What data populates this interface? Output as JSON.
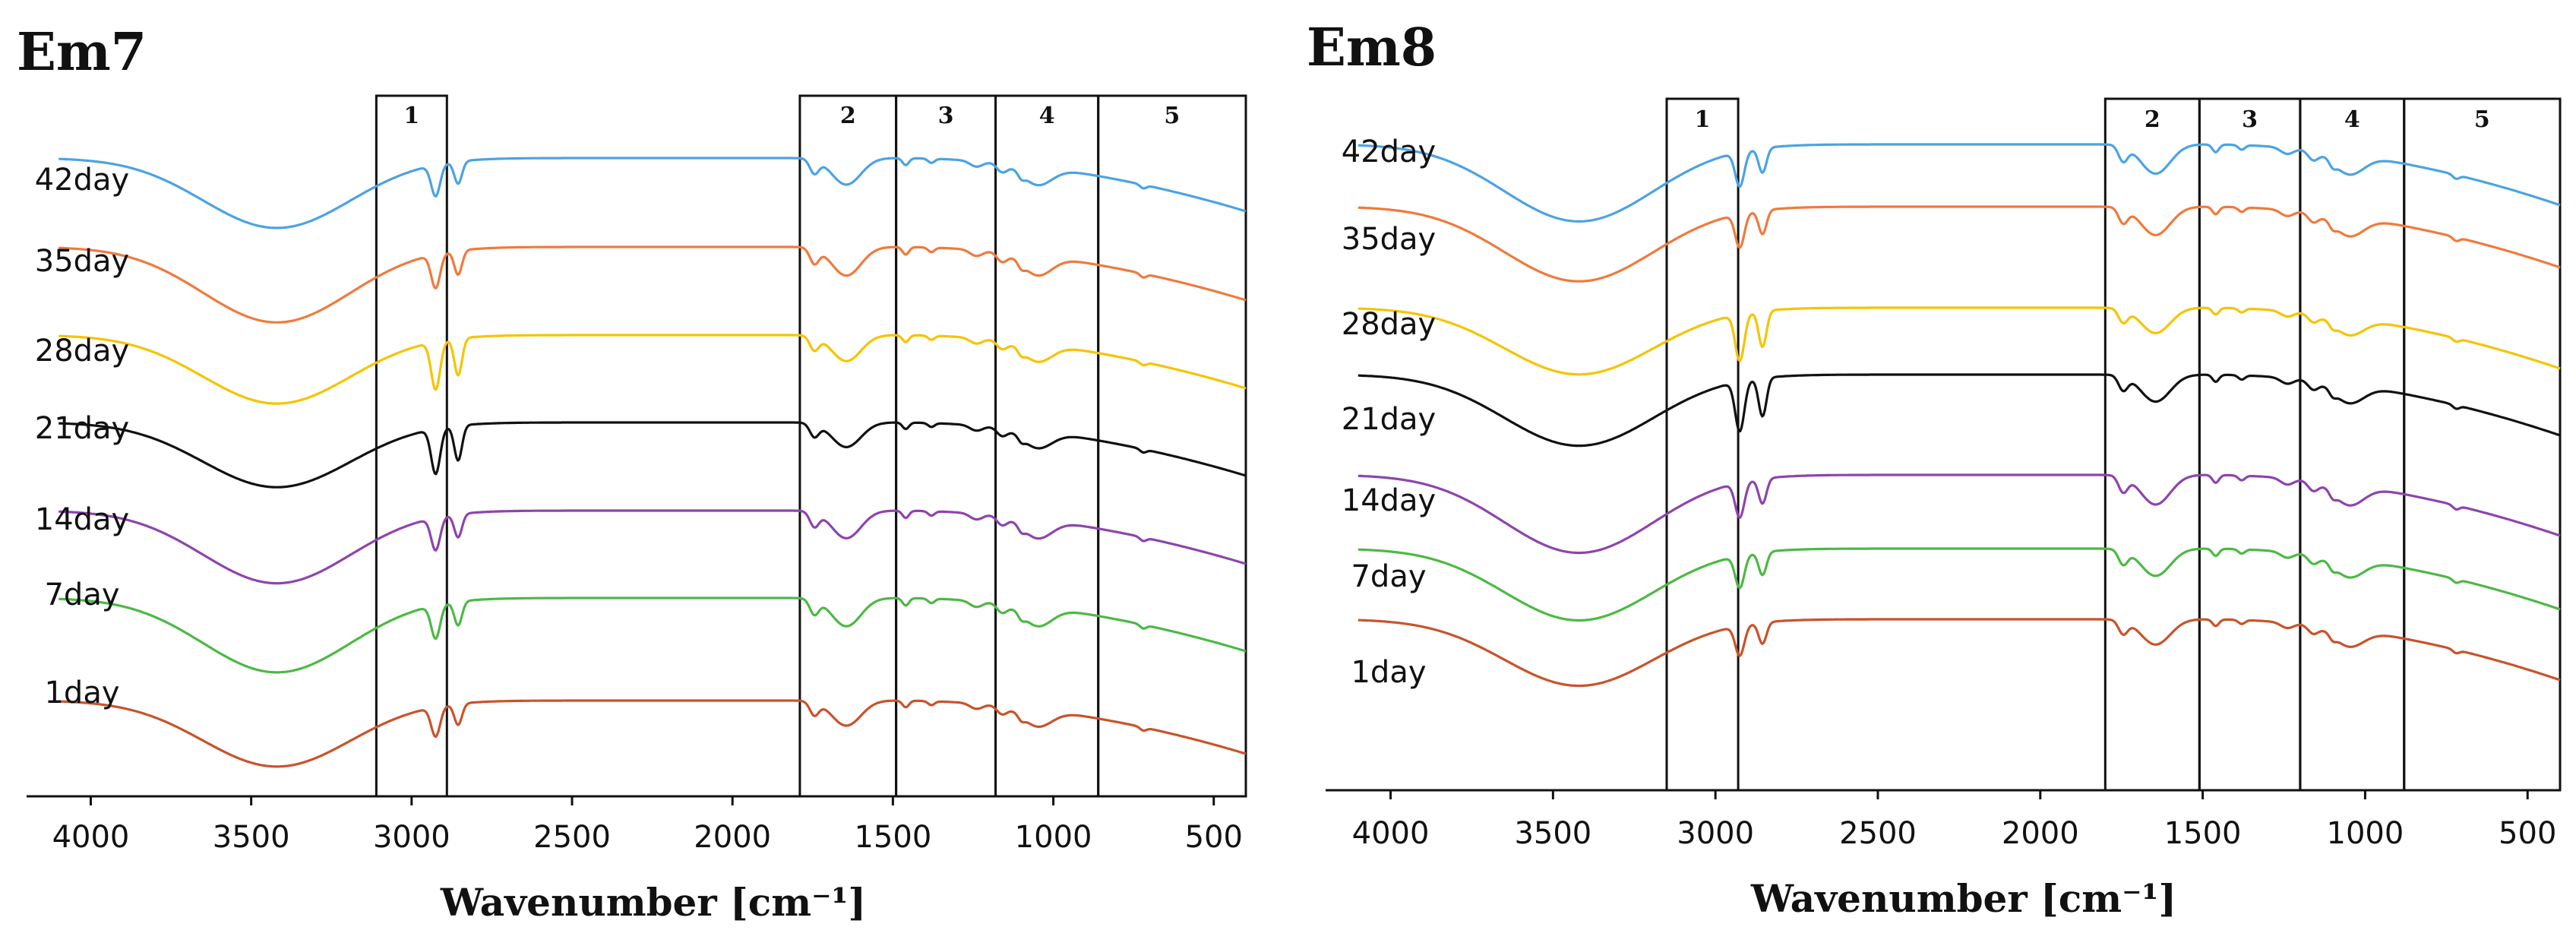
{
  "chart_data": [
    {
      "type": "line",
      "title": "Em7",
      "xlabel": "Wavenumber [cm⁻¹]",
      "ylabel": "",
      "xlim": [
        4200,
        400
      ],
      "x_ticks": [
        4000,
        3500,
        3000,
        2500,
        2000,
        1500,
        1000,
        500
      ],
      "tick_labels": [
        "4000",
        "3500",
        "3000",
        "2500",
        "2000",
        "1500",
        "1000",
        "500"
      ],
      "regions": [
        {
          "label": "1",
          "from": 3110,
          "to": 2890
        },
        {
          "label": "2",
          "from": 1790,
          "to": 1490
        },
        {
          "label": "3",
          "from": 1490,
          "to": 1180
        },
        {
          "label": "4",
          "from": 1180,
          "to": 860
        },
        {
          "label": "5",
          "from": 860,
          "to": 400
        }
      ],
      "series": [
        {
          "name": "42day",
          "color": "#4BA3E3"
        },
        {
          "name": "35day",
          "color": "#F07A3C"
        },
        {
          "name": "28day",
          "color": "#F5C400"
        },
        {
          "name": "21day",
          "color": "#111111"
        },
        {
          "name": "14day",
          "color": "#8E44AD"
        },
        {
          "name": "7day",
          "color": "#4CB944"
        },
        {
          "name": "1day",
          "color": "#C9532A"
        }
      ]
    },
    {
      "type": "line",
      "title": "Em8",
      "xlabel": "Wavenumber [cm⁻¹]",
      "ylabel": "",
      "xlim": [
        4200,
        400
      ],
      "x_ticks": [
        4000,
        3500,
        3000,
        2500,
        2000,
        1500,
        1000,
        500
      ],
      "tick_labels": [
        "4000",
        "3500",
        "3000",
        "2500",
        "2000",
        "1500",
        "1000",
        "500"
      ],
      "regions": [
        {
          "label": "1",
          "from": 3150,
          "to": 2930
        },
        {
          "label": "2",
          "from": 1800,
          "to": 1510
        },
        {
          "label": "3",
          "from": 1510,
          "to": 1200
        },
        {
          "label": "4",
          "from": 1200,
          "to": 880
        },
        {
          "label": "5",
          "from": 880,
          "to": 400
        }
      ],
      "series": [
        {
          "name": "42day",
          "color": "#4BA3E3"
        },
        {
          "name": "35day",
          "color": "#F07A3C"
        },
        {
          "name": "28day",
          "color": "#F5C400"
        },
        {
          "name": "21day",
          "color": "#111111"
        },
        {
          "name": "14day",
          "color": "#8E44AD"
        },
        {
          "name": "7day",
          "color": "#4CB944"
        },
        {
          "name": "1day",
          "color": "#C9532A"
        }
      ]
    }
  ]
}
